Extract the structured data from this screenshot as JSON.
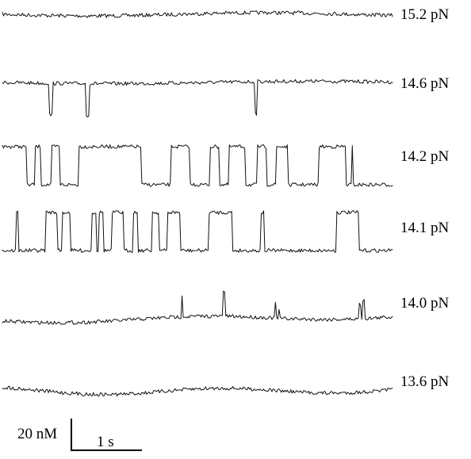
{
  "chart_data": {
    "type": "line",
    "title": "",
    "xlabel": "",
    "ylabel": "",
    "duration_s": 5.4,
    "extension_nm_range": [
      0,
      20
    ],
    "baseline_noise_nm": 0.9,
    "series": [
      {
        "name": "15.2 pN",
        "label": "15.2 pN",
        "levels_nm": [
          0
        ],
        "low_level_intervals_s": []
      },
      {
        "name": "14.6 pN",
        "label": "14.6 pN",
        "levels_nm": [
          0,
          -20
        ],
        "low_level_intervals_s": [
          [
            0.65,
            0.7
          ],
          [
            1.16,
            1.21
          ],
          [
            3.5,
            3.53
          ]
        ]
      },
      {
        "name": "14.2 pN",
        "label": "14.2 pN",
        "levels_nm": [
          24,
          0
        ],
        "low_level_intervals_s": [
          [
            0.34,
            0.45
          ],
          [
            0.53,
            0.68
          ],
          [
            0.8,
            1.05
          ],
          [
            1.92,
            2.33
          ],
          [
            2.6,
            2.87
          ],
          [
            3.0,
            3.13
          ],
          [
            3.36,
            3.52
          ],
          [
            3.65,
            3.78
          ],
          [
            3.95,
            4.38
          ],
          [
            4.75,
            4.83
          ],
          [
            4.85,
            5.4
          ]
        ]
      },
      {
        "name": "14.1 pN",
        "label": "14.1 pN",
        "levels_nm": [
          24,
          0
        ],
        "low_level_intervals_s": [
          [
            0.0,
            0.19
          ],
          [
            0.22,
            0.6
          ],
          [
            0.76,
            0.83
          ],
          [
            0.94,
            1.23
          ],
          [
            1.3,
            1.34
          ],
          [
            1.4,
            1.51
          ],
          [
            1.68,
            1.81
          ],
          [
            1.88,
            2.07
          ],
          [
            2.17,
            2.29
          ],
          [
            2.47,
            2.86
          ],
          [
            3.18,
            3.57
          ],
          [
            3.62,
            4.62
          ],
          [
            4.93,
            5.4
          ]
        ]
      },
      {
        "name": "14.0 pN",
        "label": "14.0 pN",
        "levels_nm": [
          0,
          20
        ],
        "spike_times_s": [
          2.49,
          3.07,
          3.78,
          3.83,
          4.95,
          5.0
        ],
        "spike_heights_nm": [
          14,
          16,
          10,
          5,
          9,
          12
        ]
      },
      {
        "name": "13.6 pN",
        "label": "13.6 pN",
        "levels_nm": [
          0
        ],
        "low_level_intervals_s": []
      }
    ],
    "scale_bar": {
      "y_label": "20 nM",
      "y_value_nm": 20,
      "x_label": "1 s",
      "x_value_s": 1
    }
  }
}
